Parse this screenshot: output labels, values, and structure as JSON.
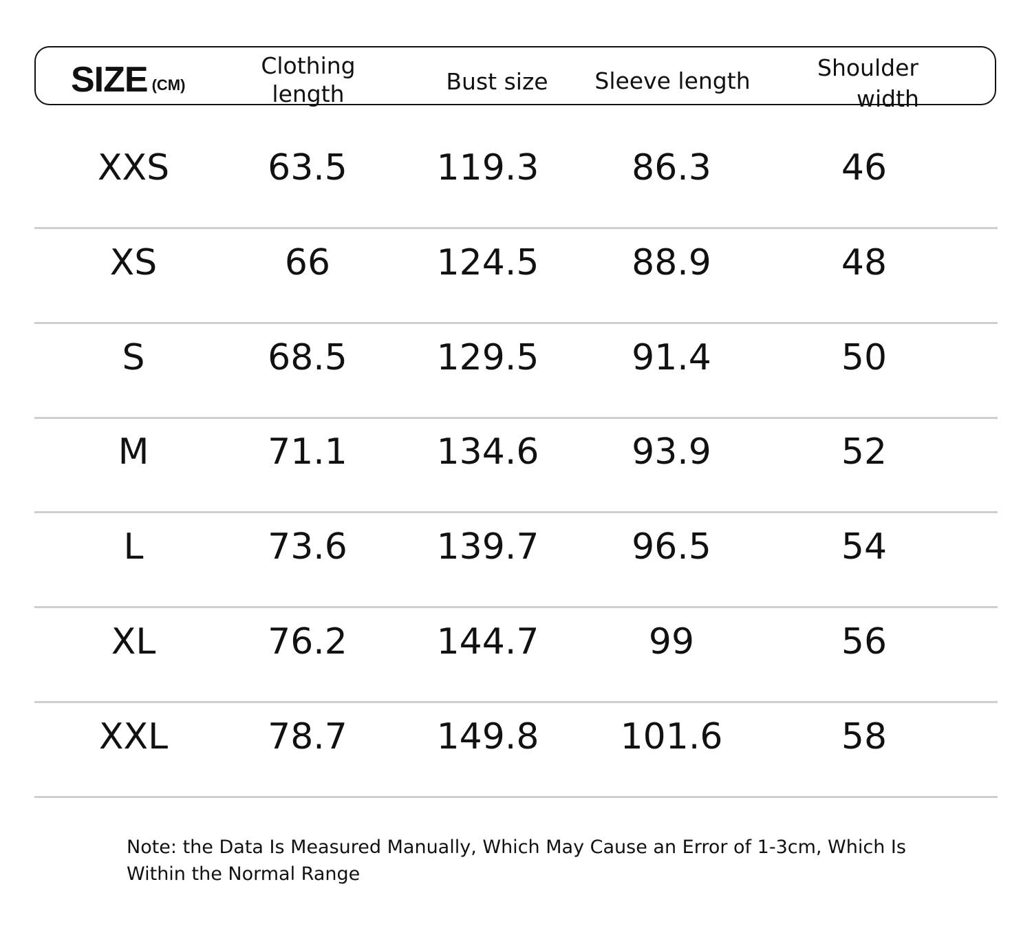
{
  "header": {
    "size_label": "SIZE",
    "size_unit": "(CM)",
    "columns": [
      {
        "line1": "Clothing",
        "line2": "length"
      },
      {
        "line1": "Bust size",
        "line2": ""
      },
      {
        "line1": "Sleeve length",
        "line2": ""
      },
      {
        "line1": "Shoulder",
        "line2": "width"
      }
    ]
  },
  "rows": [
    {
      "size": "XXS",
      "clothing_length": "63.5",
      "bust_size": "119.3",
      "sleeve_length": "86.3",
      "shoulder_width": "46"
    },
    {
      "size": "XS",
      "clothing_length": "66",
      "bust_size": "124.5",
      "sleeve_length": "88.9",
      "shoulder_width": "48"
    },
    {
      "size": "S",
      "clothing_length": "68.5",
      "bust_size": "129.5",
      "sleeve_length": "91.4",
      "shoulder_width": "50"
    },
    {
      "size": "M",
      "clothing_length": "71.1",
      "bust_size": "134.6",
      "sleeve_length": "93.9",
      "shoulder_width": "52"
    },
    {
      "size": "L",
      "clothing_length": "73.6",
      "bust_size": "139.7",
      "sleeve_length": "96.5",
      "shoulder_width": "54"
    },
    {
      "size": "XL",
      "clothing_length": "76.2",
      "bust_size": "144.7",
      "sleeve_length": "99",
      "shoulder_width": "56"
    },
    {
      "size": "XXL",
      "clothing_length": "78.7",
      "bust_size": "149.8",
      "sleeve_length": "101.6",
      "shoulder_width": "58"
    }
  ],
  "note": "Note: the Data Is Measured Manually, Which May Cause an Error of 1-3cm, Which Is Within the Normal Range"
}
